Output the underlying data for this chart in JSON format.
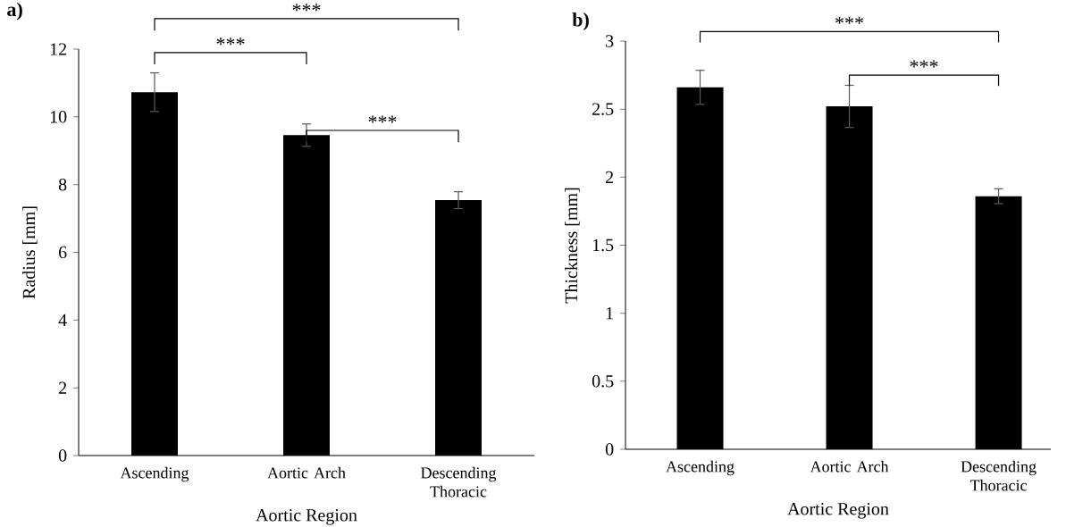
{
  "chart_data": [
    {
      "type": "bar",
      "title": "a)",
      "xlabel": "Aortic Region",
      "ylabel": "Radius [mm]",
      "categories": [
        "Ascending",
        "Aortic Arch",
        "Descending Thoracic"
      ],
      "values": [
        10.73,
        9.46,
        7.54
      ],
      "errors": [
        0.57,
        0.33,
        0.25
      ],
      "color": "#000000",
      "ylim": [
        0,
        12
      ],
      "yticks": [
        0,
        2,
        4,
        6,
        8,
        10,
        12
      ],
      "annotations": [
        "***",
        "***",
        "***"
      ]
    },
    {
      "type": "bar",
      "title": "b)",
      "xlabel": "Aortic Region",
      "ylabel": "Thickness [mm]",
      "categories": [
        "Ascending",
        "Aortic Arch",
        "Descending Thoracic"
      ],
      "values": [
        2.66,
        2.52,
        1.86
      ],
      "errors": [
        0.125,
        0.155,
        0.055
      ],
      "color": "#000000",
      "ylim": [
        0,
        3
      ],
      "yticks": [
        0,
        0.5,
        1,
        1.5,
        2,
        2.5,
        3
      ],
      "annotations": [
        "***",
        "***"
      ]
    }
  ]
}
